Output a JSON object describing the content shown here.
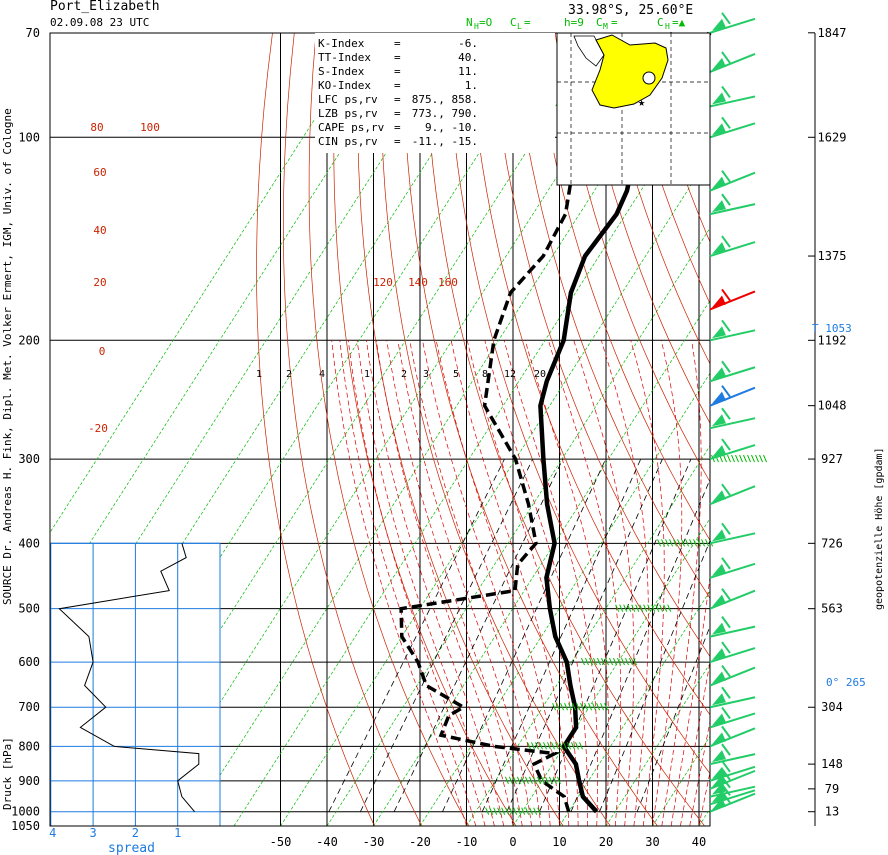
{
  "header": {
    "station": "Port_Elizabeth",
    "datetime": "02.09.08  23 UTC",
    "coords": "33.98°S, 25.60°E",
    "cloud_line": [
      "N",
      "H",
      "=O",
      "C",
      "L",
      "=",
      "h=9",
      "C",
      "M",
      "=",
      "C",
      "H",
      "=▲"
    ]
  },
  "indices": [
    {
      "name": "K-Index",
      "eq": "=",
      "value": "-6."
    },
    {
      "name": "TT-Index",
      "eq": "=",
      "value": "40."
    },
    {
      "name": "S-Index",
      "eq": "=",
      "value": "11."
    },
    {
      "name": "KO-Index",
      "eq": "=",
      "value": "1."
    },
    {
      "name": "LFC  ps,rv",
      "eq": "=",
      "value": "875., 858."
    },
    {
      "name": "LZB  ps,rv",
      "eq": "=",
      "value": "773., 790."
    },
    {
      "name": "CAPE ps,rv",
      "eq": "=",
      "value": "9., -10."
    },
    {
      "name": "CIN  ps,rv",
      "eq": "=",
      "value": "-11., -15."
    }
  ],
  "labels": {
    "ylabel": "Druck [hPa]",
    "right_label": "geopotenzielle Höhe [gpdam]",
    "source": "SOURCE Dr. Andreas H. Fink, Dipl. Met. Volker Ermert, IGM, Univ. of Cologne",
    "spread": "spread",
    "tropopause": "T 1053",
    "freezing": "0°  265"
  },
  "colors": {
    "theta": "#cc2200",
    "theta_e": "#dd0000",
    "moist": "#00bb00",
    "mixing": "#000000",
    "blue": "#1e7be0",
    "wind": "#22cc66",
    "wind_red": "#ee0000",
    "wind_blue": "#1e7be0",
    "map_land": "#ffff00"
  },
  "chart_data": {
    "type": "skew-T log-p sounding",
    "pressure_levels": [
      1000,
      900,
      800,
      700,
      600,
      500,
      400,
      300,
      200,
      100,
      70
    ],
    "pressure_ticks": [
      "1050",
      "1000",
      "900",
      "800",
      "700",
      "600",
      "500",
      "400",
      "300",
      "200",
      "100",
      "70"
    ],
    "x_ticks": [
      "-50",
      "-40",
      "-30",
      "-20",
      "-10",
      "0",
      "10",
      "20",
      "30",
      "40"
    ],
    "height_labels": [
      "1847",
      "1629",
      "1375",
      "1192",
      "1048",
      "927",
      "726",
      "563",
      "304",
      "148",
      "79",
      "13"
    ],
    "theta_labels": [
      "80",
      "100",
      "60",
      "40",
      "20",
      "0",
      "-20",
      "120",
      "140",
      "160"
    ],
    "mixing_ratio_labels": [
      "1",
      "2",
      "4",
      "1",
      "2",
      "3",
      "5",
      "8",
      "12",
      "20"
    ],
    "spread_ticks": [
      "4",
      "3",
      "2",
      "1"
    ],
    "temperature": [
      {
        "p": 1000,
        "t": 16
      },
      {
        "p": 950,
        "t": 11
      },
      {
        "p": 900,
        "t": 8
      },
      {
        "p": 850,
        "t": 5
      },
      {
        "p": 820,
        "t": 2
      },
      {
        "p": 800,
        "t": 0
      },
      {
        "p": 750,
        "t": 0
      },
      {
        "p": 700,
        "t": -3
      },
      {
        "p": 650,
        "t": -7
      },
      {
        "p": 600,
        "t": -11
      },
      {
        "p": 550,
        "t": -17
      },
      {
        "p": 500,
        "t": -22
      },
      {
        "p": 450,
        "t": -27
      },
      {
        "p": 400,
        "t": -30
      },
      {
        "p": 350,
        "t": -37
      },
      {
        "p": 300,
        "t": -44
      },
      {
        "p": 250,
        "t": -52
      },
      {
        "p": 230,
        "t": -54
      },
      {
        "p": 200,
        "t": -56
      },
      {
        "p": 170,
        "t": -61
      },
      {
        "p": 150,
        "t": -63
      },
      {
        "p": 130,
        "t": -62
      },
      {
        "p": 120,
        "t": -63
      },
      {
        "p": 100,
        "t": -68
      },
      {
        "p": 85,
        "t": -66
      },
      {
        "p": 70,
        "t": -67
      }
    ],
    "dewpoint": [
      {
        "p": 1000,
        "t": 10
      },
      {
        "p": 950,
        "t": 7
      },
      {
        "p": 900,
        "t": 0
      },
      {
        "p": 850,
        "t": -4
      },
      {
        "p": 820,
        "t": -1
      },
      {
        "p": 800,
        "t": -15
      },
      {
        "p": 770,
        "t": -28
      },
      {
        "p": 720,
        "t": -29
      },
      {
        "p": 700,
        "t": -27
      },
      {
        "p": 650,
        "t": -38
      },
      {
        "p": 600,
        "t": -43
      },
      {
        "p": 550,
        "t": -50
      },
      {
        "p": 500,
        "t": -54
      },
      {
        "p": 470,
        "t": -32
      },
      {
        "p": 430,
        "t": -35
      },
      {
        "p": 400,
        "t": -34
      },
      {
        "p": 350,
        "t": -41
      },
      {
        "p": 300,
        "t": -50
      },
      {
        "p": 250,
        "t": -64
      },
      {
        "p": 200,
        "t": -71
      },
      {
        "p": 170,
        "t": -74
      },
      {
        "p": 150,
        "t": -72
      },
      {
        "p": 130,
        "t": -73
      },
      {
        "p": 110,
        "t": -78
      },
      {
        "p": 100,
        "t": -80
      },
      {
        "p": 85,
        "t": -77
      },
      {
        "p": 70,
        "t": -75
      }
    ],
    "spread_profile": [
      {
        "p": 1000,
        "s": 0.6
      },
      {
        "p": 950,
        "s": 0.9
      },
      {
        "p": 900,
        "s": 1.0
      },
      {
        "p": 850,
        "s": 0.5
      },
      {
        "p": 820,
        "s": 0.5
      },
      {
        "p": 800,
        "s": 2.5
      },
      {
        "p": 750,
        "s": 3.3
      },
      {
        "p": 700,
        "s": 2.7
      },
      {
        "p": 650,
        "s": 3.2
      },
      {
        "p": 600,
        "s": 3.0
      },
      {
        "p": 550,
        "s": 3.1
      },
      {
        "p": 500,
        "s": 3.8
      },
      {
        "p": 470,
        "s": 1.2
      },
      {
        "p": 440,
        "s": 1.4
      },
      {
        "p": 420,
        "s": 0.8
      },
      {
        "p": 400,
        "s": 0.9
      }
    ]
  }
}
